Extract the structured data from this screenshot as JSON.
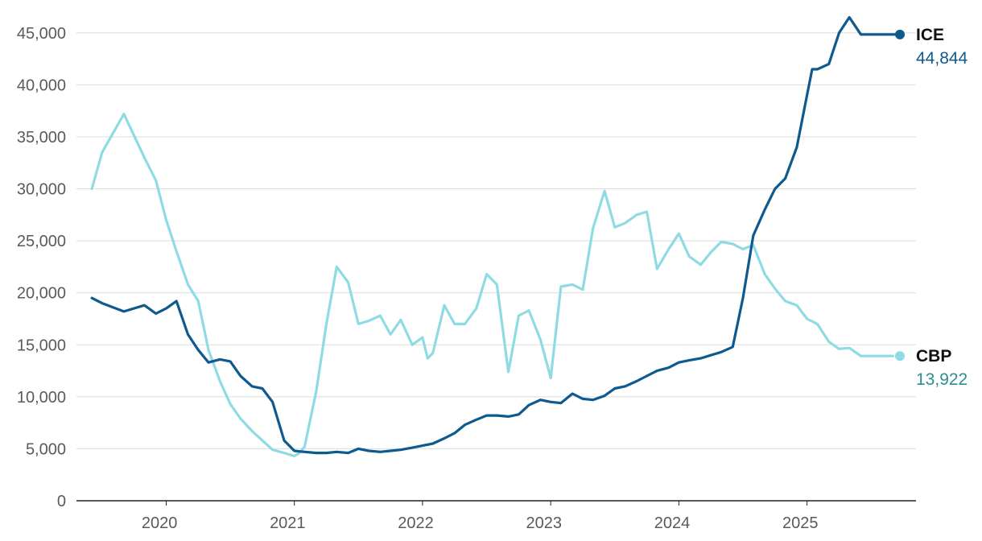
{
  "chart_data": {
    "type": "line",
    "title": "",
    "xlabel": "",
    "ylabel": "",
    "ylim": [
      0,
      47000
    ],
    "xlim": [
      2019.3,
      2025.85
    ],
    "y_ticks": [
      "0",
      "5,000",
      "10,000",
      "15,000",
      "20,000",
      "25,000",
      "30,000",
      "35,000",
      "40,000",
      "45,000"
    ],
    "y_tick_values": [
      0,
      5000,
      10000,
      15000,
      20000,
      25000,
      30000,
      35000,
      40000,
      45000
    ],
    "x_ticks": [
      "2020",
      "2021",
      "2022",
      "2023",
      "2024",
      "2025"
    ],
    "x_tick_values": [
      2020,
      2021,
      2022,
      2023,
      2024,
      2025
    ],
    "grid": true,
    "legend": "end-of-line labels",
    "series": [
      {
        "name": "CBP",
        "color": "#8fdbe3",
        "label_color": "#2a8f8f",
        "end_value": "13,922",
        "x": [
          2019.42,
          2019.5,
          2019.67,
          2019.83,
          2019.92,
          2020.0,
          2020.08,
          2020.17,
          2020.25,
          2020.33,
          2020.42,
          2020.5,
          2020.58,
          2020.67,
          2020.75,
          2020.83,
          2020.92,
          2021.0,
          2021.04,
          2021.08,
          2021.17,
          2021.25,
          2021.33,
          2021.42,
          2021.5,
          2021.58,
          2021.67,
          2021.75,
          2021.83,
          2021.92,
          2022.0,
          2022.04,
          2022.08,
          2022.17,
          2022.25,
          2022.33,
          2022.42,
          2022.5,
          2022.58,
          2022.67,
          2022.75,
          2022.83,
          2022.92,
          2023.0,
          2023.08,
          2023.17,
          2023.25,
          2023.33,
          2023.42,
          2023.5,
          2023.58,
          2023.67,
          2023.75,
          2023.83,
          2023.92,
          2024.0,
          2024.08,
          2024.17,
          2024.25,
          2024.33,
          2024.42,
          2024.5,
          2024.58,
          2024.67,
          2024.75,
          2024.83,
          2024.92,
          2025.0,
          2025.08,
          2025.17,
          2025.25,
          2025.33,
          2025.42,
          2025.5,
          2025.58,
          2025.67
        ],
        "values": [
          30000,
          33500,
          37200,
          33000,
          30800,
          27000,
          24000,
          20800,
          19200,
          14500,
          11500,
          9300,
          7900,
          6700,
          5800,
          4900,
          4600,
          4300,
          4600,
          5200,
          10500,
          17000,
          22500,
          21000,
          17000,
          17300,
          17800,
          16000,
          17400,
          15000,
          15700,
          13700,
          14200,
          18800,
          17000,
          17000,
          18500,
          21800,
          20800,
          12400,
          17800,
          18300,
          15500,
          11800,
          20600,
          20800,
          20300,
          26200,
          29800,
          26300,
          26700,
          27500,
          27800,
          22300,
          24200,
          25700,
          23500,
          22700,
          23900,
          24900,
          24700,
          24200,
          24600,
          21800,
          20400,
          19200,
          18800,
          17500,
          17000,
          15300,
          14600,
          14700,
          13922,
          13922,
          13922,
          13922
        ],
        "end_label": "CBP"
      },
      {
        "name": "ICE",
        "color": "#0e5a8f",
        "label_color": "#0e5a8f",
        "end_value": "44,844",
        "x": [
          2019.42,
          2019.5,
          2019.67,
          2019.83,
          2019.92,
          2020.0,
          2020.08,
          2020.17,
          2020.25,
          2020.33,
          2020.42,
          2020.5,
          2020.58,
          2020.67,
          2020.75,
          2020.83,
          2020.92,
          2021.0,
          2021.08,
          2021.17,
          2021.25,
          2021.33,
          2021.42,
          2021.5,
          2021.58,
          2021.67,
          2021.75,
          2021.83,
          2021.92,
          2022.0,
          2022.08,
          2022.17,
          2022.25,
          2022.33,
          2022.42,
          2022.5,
          2022.58,
          2022.67,
          2022.75,
          2022.83,
          2022.92,
          2023.0,
          2023.08,
          2023.17,
          2023.25,
          2023.33,
          2023.42,
          2023.5,
          2023.58,
          2023.67,
          2023.75,
          2023.83,
          2023.92,
          2024.0,
          2024.08,
          2024.17,
          2024.25,
          2024.33,
          2024.42,
          2024.5,
          2024.58,
          2024.67,
          2024.75,
          2024.83,
          2024.92,
          2025.0,
          2025.04,
          2025.08,
          2025.17,
          2025.25,
          2025.33,
          2025.42,
          2025.5,
          2025.58,
          2025.67,
          2025.75
        ],
        "values": [
          19500,
          19000,
          18200,
          18800,
          18000,
          18500,
          19200,
          16000,
          14500,
          13300,
          13600,
          13400,
          12000,
          11000,
          10800,
          9500,
          5800,
          4800,
          4700,
          4600,
          4600,
          4700,
          4600,
          5000,
          4800,
          4700,
          4800,
          4900,
          5100,
          5300,
          5500,
          6000,
          6500,
          7300,
          7800,
          8200,
          8200,
          8100,
          8300,
          9200,
          9700,
          9500,
          9400,
          10300,
          9800,
          9700,
          10100,
          10800,
          11000,
          11500,
          12000,
          12500,
          12800,
          13300,
          13500,
          13700,
          14000,
          14300,
          14800,
          19500,
          25500,
          28000,
          30000,
          31000,
          34000,
          39000,
          41500,
          41500,
          42000,
          45000,
          46500,
          44844,
          44844,
          44844,
          44844,
          44844
        ],
        "end_label": "ICE"
      }
    ]
  }
}
